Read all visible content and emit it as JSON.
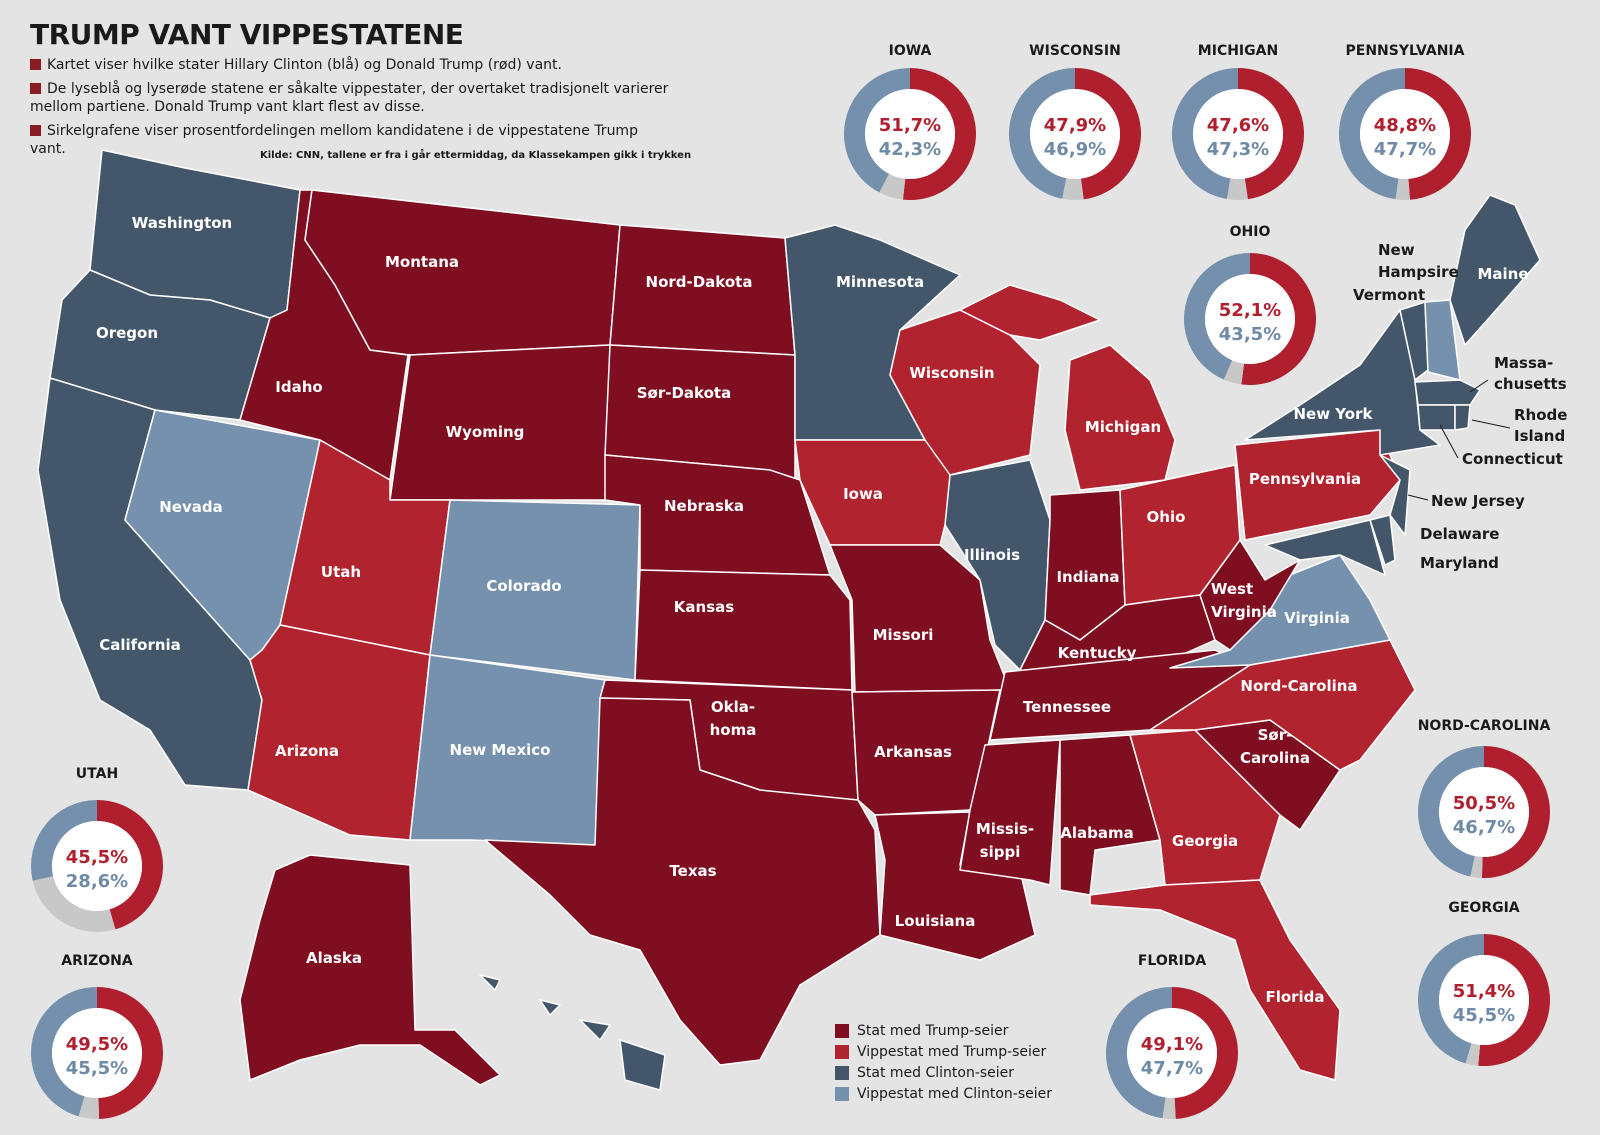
{
  "title": "TRUMP VANT VIPPESTATENE",
  "notes": [
    "Kartet viser hvilke stater Hillary Clinton (blå) og Donald Trump (rød) vant.",
    "De lyseblå og lyserøde statene er såkalte vippestater, der overtaket tradisjonelt varierer mellom partiene.  Donald Trump vant klart flest av disse.",
    "Sirkelgrafene viser prosentfordelingen mellom kandidatene i de vippestatene Trump vant."
  ],
  "source": "Kilde: CNN, tallene er fra i går ettermiddag, da Klassekampen gikk i trykken",
  "colors": {
    "trump": "#7e0e20",
    "swing_trump": "#b0232f",
    "clinton": "#44576a",
    "swing_clinton": "#7591ad",
    "other": "#c8c8c8",
    "donut_trump": "#b01f2e",
    "donut_clinton": "#7590ad"
  },
  "legend": [
    {
      "label": "Stat med Trump-seier",
      "color": "#7e0e20"
    },
    {
      "label": "Vippestat med Trump-seier",
      "color": "#b0232f"
    },
    {
      "label": "Stat med Clinton-seier",
      "color": "#44576a"
    },
    {
      "label": "Vippestat med Clinton-seier",
      "color": "#7591ad"
    }
  ],
  "states": {
    "washington": "Washington",
    "oregon": "Oregon",
    "california": "California",
    "nevada": "Nevada",
    "idaho": "Idaho",
    "montana": "Montana",
    "wyoming": "Wyoming",
    "utah": "Utah",
    "colorado": "Colorado",
    "arizona": "Arizona",
    "new_mexico": "New Mexico",
    "nord_dakota": "Nord-Dakota",
    "sor_dakota": "Sør-Dakota",
    "nebraska": "Nebraska",
    "kansas": "Kansas",
    "oklahoma": "Okla-\nhoma",
    "texas": "Texas",
    "minnesota": "Minnesota",
    "iowa": "Iowa",
    "missori": "Missori",
    "arkansas": "Arkansas",
    "louisiana": "Louisiana",
    "wisconsin": "Wisconsin",
    "illinois": "Illinois",
    "michigan": "Michigan",
    "indiana": "Indiana",
    "ohio": "Ohio",
    "kentucky": "Kentucky",
    "tennessee": "Tennessee",
    "mississippi": "Missis-\nsippi",
    "alabama": "Alabama",
    "georgia": "Georgia",
    "florida": "Florida",
    "sor_carolina": "Sør-\nCarolina",
    "nord_carolina": "Nord-Carolina",
    "virginia": "Virginia",
    "west_virginia": "West\nVirginia",
    "pennsylvania": "Pennsylvania",
    "new_york": "New York",
    "maine": "Maine",
    "new_hampshire": "New\nHampsire",
    "vermont": "Vermont",
    "massachusetts": "Massa-\nchusetts",
    "rhode_island": "Rhode\nIsland",
    "connecticut": "Connecticut",
    "new_jersey": "New Jersey",
    "delaware": "Delaware",
    "maryland": "Maryland",
    "alaska": "Alaska"
  },
  "donuts": [
    {
      "state": "IOWA",
      "trump": 51.7,
      "clinton": 42.3,
      "trump_label": "51,7%",
      "clinton_label": "42,3%"
    },
    {
      "state": "WISCONSIN",
      "trump": 47.9,
      "clinton": 46.9,
      "trump_label": "47,9%",
      "clinton_label": "46,9%"
    },
    {
      "state": "MICHIGAN",
      "trump": 47.6,
      "clinton": 47.3,
      "trump_label": "47,6%",
      "clinton_label": "47,3%"
    },
    {
      "state": "PENNSYLVANIA",
      "trump": 48.8,
      "clinton": 47.7,
      "trump_label": "48,8%",
      "clinton_label": "47,7%"
    },
    {
      "state": "OHIO",
      "trump": 52.1,
      "clinton": 43.5,
      "trump_label": "52,1%",
      "clinton_label": "43,5%"
    },
    {
      "state": "NORD-CAROLINA",
      "trump": 50.5,
      "clinton": 46.7,
      "trump_label": "50,5%",
      "clinton_label": "46,7%"
    },
    {
      "state": "GEORGIA",
      "trump": 51.4,
      "clinton": 45.5,
      "trump_label": "51,4%",
      "clinton_label": "45,5%"
    },
    {
      "state": "FLORIDA",
      "trump": 49.1,
      "clinton": 47.7,
      "trump_label": "49,1%",
      "clinton_label": "47,7%"
    },
    {
      "state": "UTAH",
      "trump": 45.5,
      "clinton": 28.6,
      "trump_label": "45,5%",
      "clinton_label": "28,6%"
    },
    {
      "state": "ARIZONA",
      "trump": 49.5,
      "clinton": 45.5,
      "trump_label": "49,5%",
      "clinton_label": "45,5%"
    }
  ]
}
